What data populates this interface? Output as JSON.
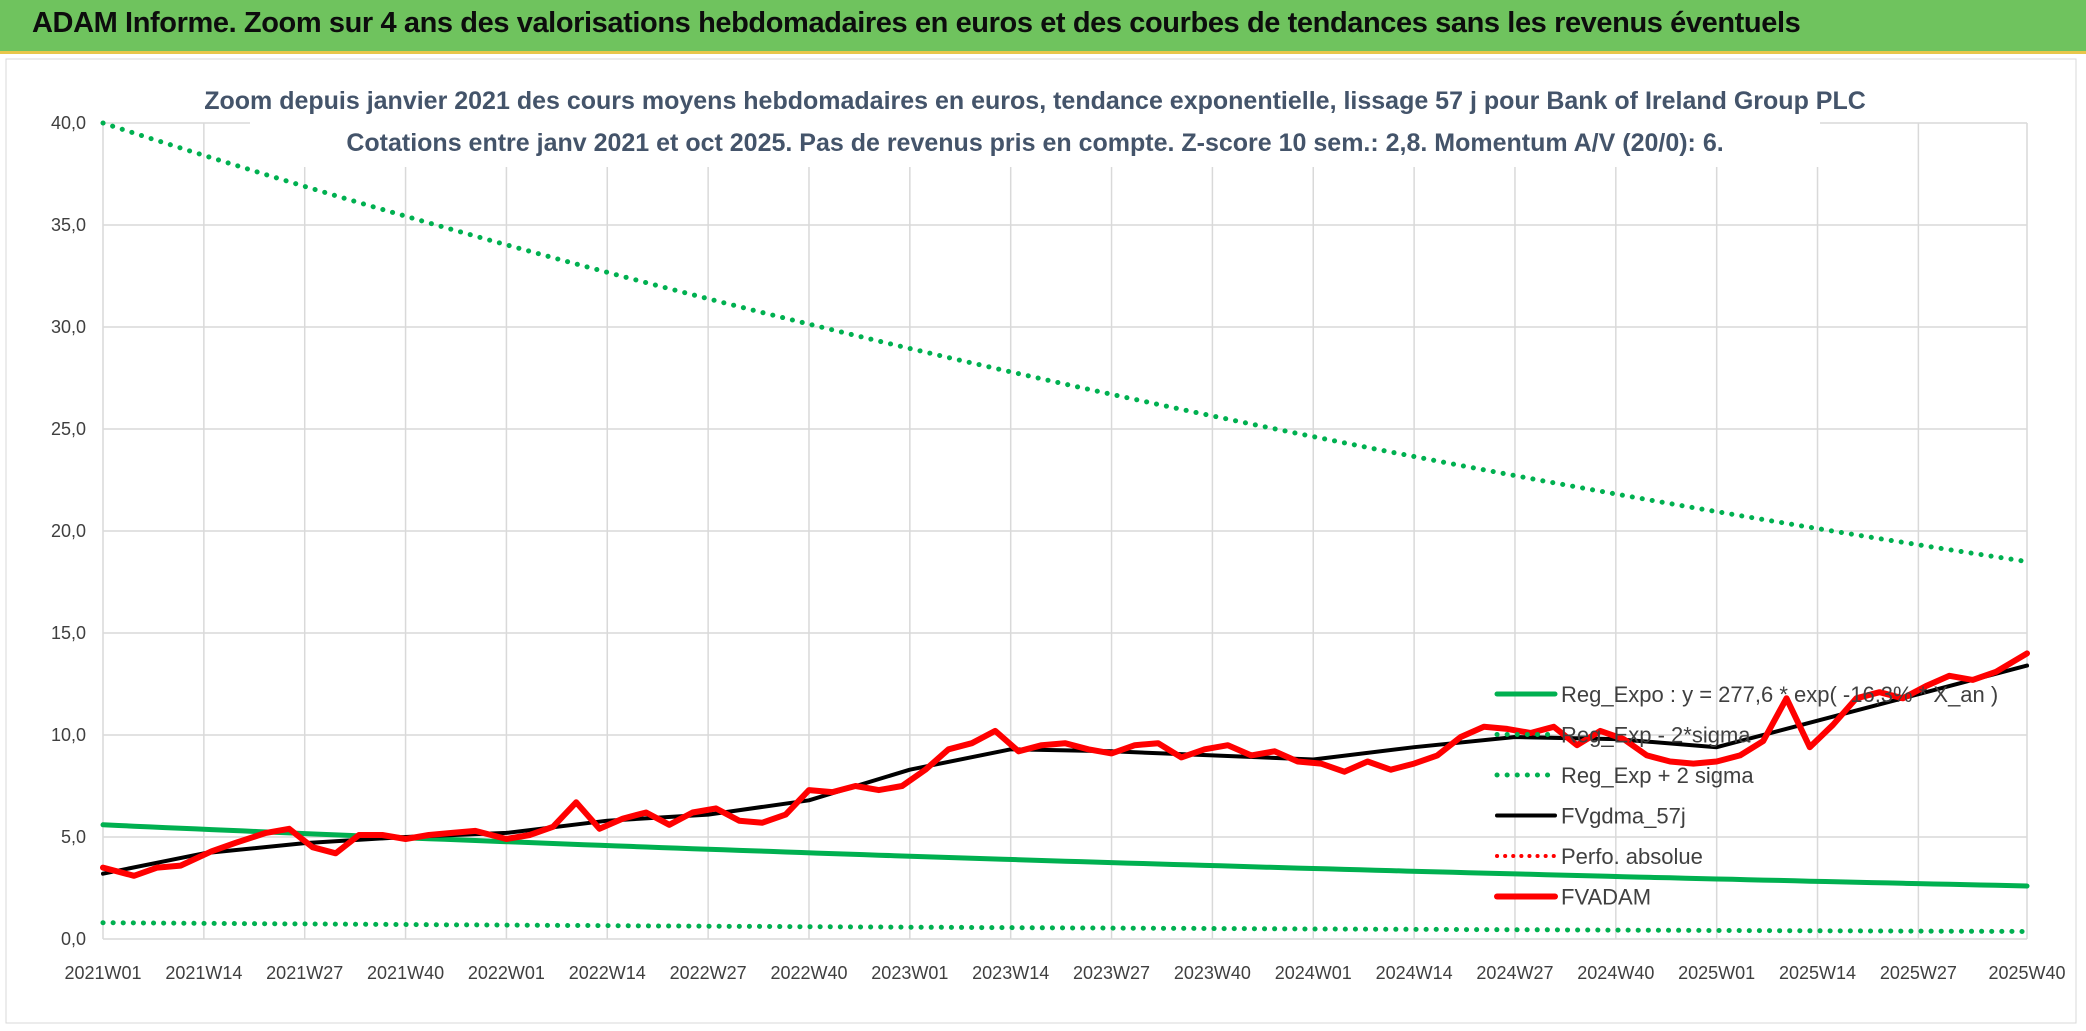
{
  "header": {
    "title": "ADAM Informe. Zoom sur 4 ans des valorisations hebdomadaires en euros et des courbes de tendances sans les revenus éventuels"
  },
  "colors": {
    "banner": "#6fc35e",
    "reg": "#00b050",
    "fvadam": "#ff0000",
    "gdma": "#000000",
    "grid": "#d9d9d9"
  },
  "chart_data": {
    "type": "line",
    "title": "Zoom depuis janvier 2021 des cours moyens hebdomadaires en euros, tendance exponentielle, lissage 57 j pour Bank of Ireland Group PLC",
    "subtitle": "Cotations entre janv 2021 et oct 2025. Pas de revenus pris en compte. Z-score 10 sem.: 2,8. Momentum A/V (20/0): 6.",
    "xlabel": "",
    "ylabel": "",
    "ylim": [
      0,
      40
    ],
    "yticks": [
      "0,0",
      "5,0",
      "10,0",
      "15,0",
      "20,0",
      "25,0",
      "30,0",
      "35,0",
      "40,0"
    ],
    "ytick_values": [
      0,
      5,
      10,
      15,
      20,
      25,
      30,
      35,
      40
    ],
    "categories": [
      "2021W01",
      "2021W14",
      "2021W27",
      "2021W40",
      "2022W01",
      "2022W14",
      "2022W27",
      "2022W40",
      "2023W01",
      "2023W14",
      "2023W27",
      "2023W40",
      "2024W01",
      "2024W14",
      "2024W27",
      "2024W40",
      "2025W01",
      "2025W14",
      "2025W27",
      "2025W40"
    ],
    "week_count": 249,
    "grid": true,
    "legend_position": "bottom-right",
    "series": [
      {
        "name": "Reg_Expo : y = 277,6 * exp( -16,3% * X_an )",
        "style": "solid-green",
        "x": [
          0,
          248
        ],
        "values": [
          5.6,
          2.6
        ]
      },
      {
        "name": "Reg_Exp - 2*sigma",
        "style": "dotted-green",
        "x": [
          0,
          248
        ],
        "values": [
          0.8,
          0.37
        ]
      },
      {
        "name": "Reg_Exp + 2 sigma",
        "style": "dotted-green",
        "x": [
          0,
          248
        ],
        "values": [
          40.0,
          18.5
        ]
      },
      {
        "name": "FVgdma_57j",
        "style": "solid-black",
        "x": [
          0,
          13,
          26,
          39,
          52,
          65,
          78,
          91,
          104,
          117,
          130,
          143,
          156,
          169,
          182,
          195,
          208,
          221,
          234,
          248
        ],
        "values": [
          3.2,
          4.2,
          4.7,
          5.0,
          5.2,
          5.8,
          6.1,
          6.8,
          8.3,
          9.3,
          9.2,
          9.0,
          8.8,
          9.4,
          9.9,
          9.8,
          9.4,
          10.7,
          12.0,
          13.4
        ]
      },
      {
        "name": "Perfo. absolue",
        "style": "dotted-red",
        "x": [],
        "values": []
      },
      {
        "name": "FVADAM",
        "style": "solid-red",
        "x": [
          0,
          4,
          7,
          10,
          14,
          17,
          21,
          24,
          27,
          30,
          33,
          36,
          39,
          42,
          45,
          48,
          52,
          55,
          58,
          61,
          64,
          67,
          70,
          73,
          76,
          79,
          82,
          85,
          88,
          91,
          94,
          97,
          100,
          103,
          106,
          109,
          112,
          115,
          118,
          121,
          124,
          127,
          130,
          133,
          136,
          139,
          142,
          145,
          148,
          151,
          154,
          157,
          160,
          163,
          166,
          169,
          172,
          175,
          178,
          181,
          184,
          187,
          190,
          193,
          196,
          199,
          202,
          205,
          208,
          211,
          214,
          217,
          220,
          223,
          226,
          229,
          232,
          235,
          238,
          241,
          244,
          248
        ],
        "values": [
          3.5,
          3.1,
          3.5,
          3.6,
          4.3,
          4.7,
          5.2,
          5.4,
          4.5,
          4.2,
          5.1,
          5.1,
          4.9,
          5.1,
          5.2,
          5.3,
          4.9,
          5.1,
          5.5,
          6.7,
          5.4,
          5.9,
          6.2,
          5.6,
          6.2,
          6.4,
          5.8,
          5.7,
          6.1,
          7.3,
          7.2,
          7.5,
          7.3,
          7.5,
          8.3,
          9.3,
          9.6,
          10.2,
          9.2,
          9.5,
          9.6,
          9.3,
          9.1,
          9.5,
          9.6,
          8.9,
          9.3,
          9.5,
          9.0,
          9.2,
          8.7,
          8.6,
          8.2,
          8.7,
          8.3,
          8.6,
          9.0,
          9.9,
          10.4,
          10.3,
          10.1,
          10.4,
          9.5,
          10.2,
          9.8,
          9.0,
          8.7,
          8.6,
          8.7,
          9.0,
          9.7,
          11.8,
          9.4,
          10.5,
          11.8,
          12.1,
          11.8,
          12.4,
          12.9,
          12.7,
          13.1,
          14.0
        ]
      }
    ]
  }
}
